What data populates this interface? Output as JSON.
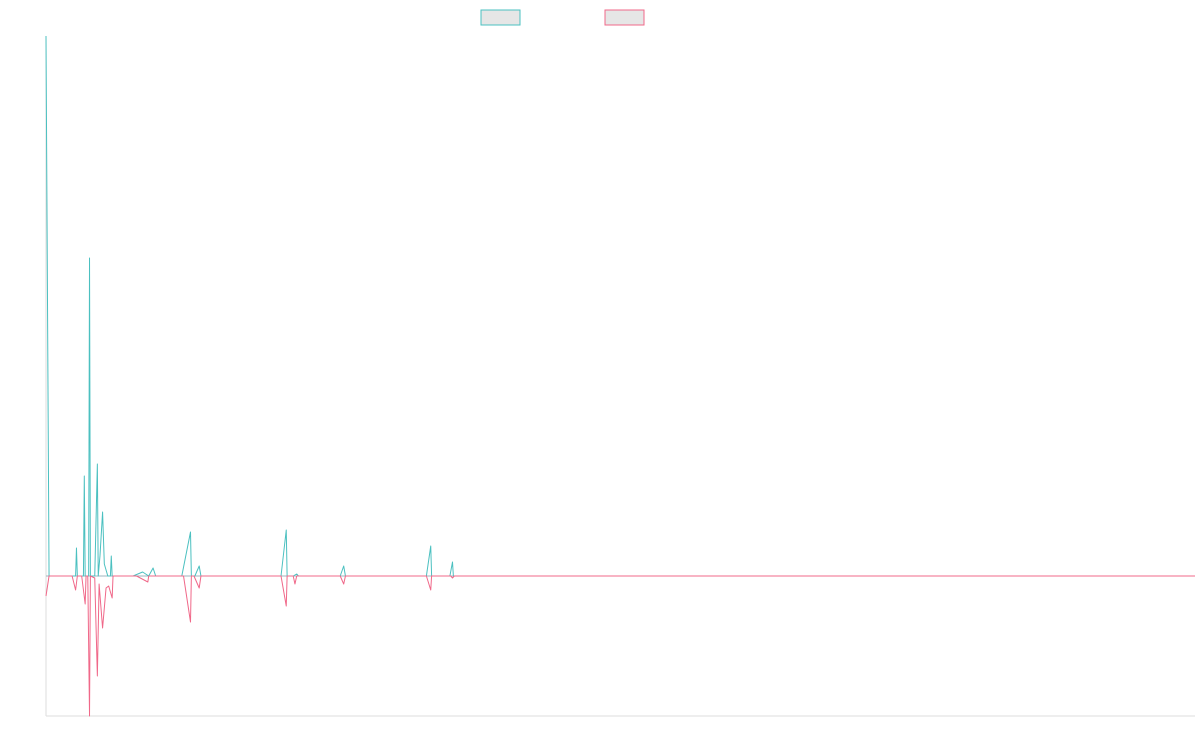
{
  "chart_data": {
    "type": "line",
    "title": "",
    "xlabel": "",
    "ylabel": "",
    "grid": false,
    "legend": "top-center",
    "ylim": [
      -140,
      540
    ],
    "xlim": [
      0,
      132
    ],
    "series": [
      {
        "color": "#4bc0c0",
        "legend_fill": "#e6e6e6",
        "points": [
          [
            0,
            540
          ],
          [
            0.35,
            0
          ],
          [
            3.4,
            0
          ],
          [
            3.5,
            28
          ],
          [
            3.6,
            0
          ],
          [
            4.3,
            0
          ],
          [
            4.4,
            100
          ],
          [
            4.5,
            0
          ],
          [
            4.9,
            0
          ],
          [
            5.0,
            318
          ],
          [
            5.1,
            0
          ],
          [
            5.6,
            0
          ],
          [
            5.9,
            112
          ],
          [
            6.0,
            0
          ],
          [
            6.2,
            20
          ],
          [
            6.5,
            64
          ],
          [
            6.7,
            12
          ],
          [
            7.1,
            0
          ],
          [
            7.4,
            0
          ],
          [
            7.5,
            20
          ],
          [
            7.6,
            0
          ],
          [
            10.0,
            0
          ],
          [
            11.1,
            4
          ],
          [
            11.8,
            0
          ],
          [
            12.3,
            8
          ],
          [
            12.6,
            0
          ],
          [
            15.0,
            0
          ],
          [
            15.6,
            0
          ],
          [
            16.6,
            44
          ],
          [
            16.7,
            0
          ],
          [
            17.1,
            0
          ],
          [
            17.6,
            10
          ],
          [
            17.8,
            0
          ],
          [
            27.0,
            0
          ],
          [
            27.6,
            46
          ],
          [
            27.7,
            0
          ],
          [
            28.4,
            0
          ],
          [
            28.8,
            2
          ],
          [
            29.0,
            0
          ],
          [
            33.8,
            0
          ],
          [
            34.2,
            10
          ],
          [
            34.4,
            0
          ],
          [
            43.7,
            0
          ],
          [
            44.2,
            30
          ],
          [
            44.3,
            0
          ],
          [
            46.4,
            0
          ],
          [
            46.7,
            14
          ],
          [
            46.8,
            0
          ],
          [
            132,
            0
          ]
        ]
      },
      {
        "color": "#f06889",
        "legend_fill": "#e6e6e6",
        "points": [
          [
            0,
            -20
          ],
          [
            0.35,
            0
          ],
          [
            3.0,
            0
          ],
          [
            3.4,
            -14
          ],
          [
            3.6,
            0
          ],
          [
            4.1,
            0
          ],
          [
            4.5,
            -28
          ],
          [
            4.6,
            0
          ],
          [
            4.8,
            0
          ],
          [
            5.0,
            -140
          ],
          [
            5.1,
            0
          ],
          [
            5.6,
            -2
          ],
          [
            5.9,
            -100
          ],
          [
            6.1,
            -8
          ],
          [
            6.5,
            -52
          ],
          [
            6.9,
            -12
          ],
          [
            7.2,
            -10
          ],
          [
            7.6,
            -22
          ],
          [
            7.7,
            0
          ],
          [
            10.4,
            0
          ],
          [
            11.7,
            -6
          ],
          [
            11.8,
            0
          ],
          [
            15.0,
            0
          ],
          [
            15.8,
            0
          ],
          [
            16.6,
            -46
          ],
          [
            16.7,
            0
          ],
          [
            17.0,
            0
          ],
          [
            17.6,
            -12
          ],
          [
            17.8,
            0
          ],
          [
            27.0,
            0
          ],
          [
            27.6,
            -30
          ],
          [
            27.7,
            0
          ],
          [
            28.4,
            0
          ],
          [
            28.6,
            -8
          ],
          [
            28.8,
            0
          ],
          [
            33.8,
            0
          ],
          [
            34.2,
            -8
          ],
          [
            34.4,
            0
          ],
          [
            43.7,
            0
          ],
          [
            44.2,
            -14
          ],
          [
            44.3,
            0
          ],
          [
            46.5,
            0
          ],
          [
            46.7,
            -2
          ],
          [
            46.9,
            0
          ],
          [
            132,
            0
          ]
        ]
      }
    ]
  }
}
